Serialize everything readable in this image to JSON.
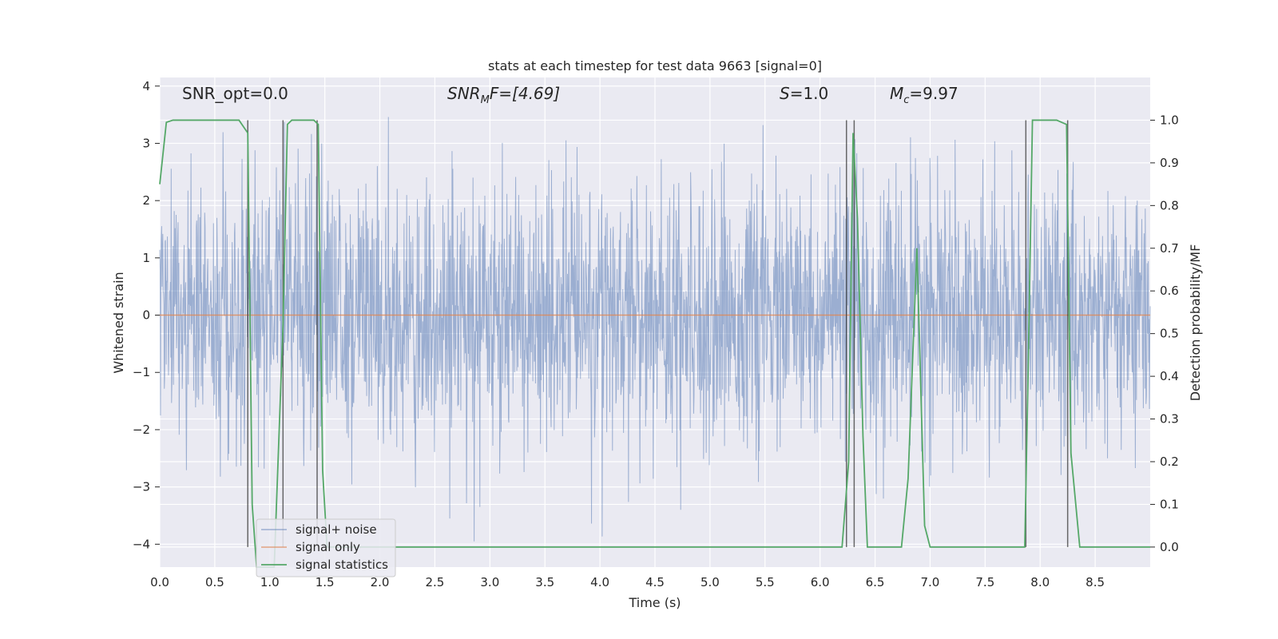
{
  "chart_data": {
    "type": "line",
    "title": "stats at each timestep for test data 9663 [signal=0]",
    "xlabel": "Time (s)",
    "ylabel": "Whitened strain",
    "y2label": "Detection probability/MF",
    "xlim": [
      0.0,
      9.0
    ],
    "ylim": [
      -4.4,
      4.15
    ],
    "y2lim": [
      -0.047,
      1.1
    ],
    "x_ticks": [
      "0.0",
      "0.5",
      "1.0",
      "1.5",
      "2.0",
      "2.5",
      "3.0",
      "3.5",
      "4.0",
      "4.5",
      "5.0",
      "5.5",
      "6.0",
      "6.5",
      "7.0",
      "7.5",
      "8.0",
      "8.5"
    ],
    "y_ticks": [
      "4",
      "3",
      "2",
      "1",
      "0",
      "−1",
      "−2",
      "−3",
      "−4"
    ],
    "y2_ticks": [
      "1.0",
      "0.9",
      "0.8",
      "0.7",
      "0.6",
      "0.5",
      "0.4",
      "0.3",
      "0.2",
      "0.1",
      "0.0"
    ],
    "grid": true,
    "legend_position": "lower-left",
    "annotations": {
      "snr_opt": "SNR_opt=0.0",
      "snr_mf_prefix": "SNR",
      "snr_mf_sub": "M",
      "snr_mf_suffix": "F=[4.69]",
      "s_prefix": "S",
      "s_suffix": "=1.0",
      "mc_prefix": "M",
      "mc_sub": "c",
      "mc_suffix": "=9.97"
    },
    "series": [
      {
        "name": "signal+ noise",
        "color": "#4c72b0",
        "note": "whitened noise, roughly gaussian around 0 with std ~1, sampled over 0-9 s"
      },
      {
        "name": "signal only",
        "color": "#dd8452",
        "x": [
          0.0,
          9.0
        ],
        "y": [
          0.0,
          0.0
        ]
      },
      {
        "name": "signal statistics",
        "color": "#55a868",
        "axis": "right",
        "x": [
          0.0,
          0.06,
          0.12,
          0.5,
          0.72,
          0.8,
          0.84,
          0.88,
          0.92,
          1.04,
          1.12,
          1.16,
          1.2,
          1.4,
          1.44,
          1.48,
          1.52,
          1.6,
          2.0,
          3.0,
          4.0,
          5.0,
          6.0,
          6.2,
          6.26,
          6.3,
          6.34,
          6.39,
          6.43,
          6.5,
          6.74,
          6.8,
          6.88,
          6.95,
          7.0,
          7.5,
          7.86,
          7.89,
          7.93,
          8.15,
          8.24,
          8.28,
          8.36,
          8.5,
          9.0
        ],
        "y": [
          0.85,
          0.995,
          1.0,
          1.0,
          1.0,
          0.97,
          0.1,
          -0.047,
          -0.047,
          -0.047,
          0.52,
          0.99,
          1.0,
          1.0,
          0.99,
          0.18,
          0.0,
          0.0,
          0.0,
          0.0,
          0.0,
          0.0,
          0.0,
          0.0,
          0.2,
          0.97,
          0.77,
          0.26,
          0.0,
          0.0,
          0.0,
          0.16,
          0.7,
          0.05,
          0.0,
          0.0,
          0.0,
          0.4,
          1.0,
          1.0,
          0.99,
          0.22,
          0.0,
          0.0,
          0.0
        ]
      }
    ],
    "vertical_markers_x": [
      0.8,
      1.12,
      1.43,
      6.24,
      6.31,
      7.87,
      8.25
    ],
    "noise_sample_count": 2600
  }
}
